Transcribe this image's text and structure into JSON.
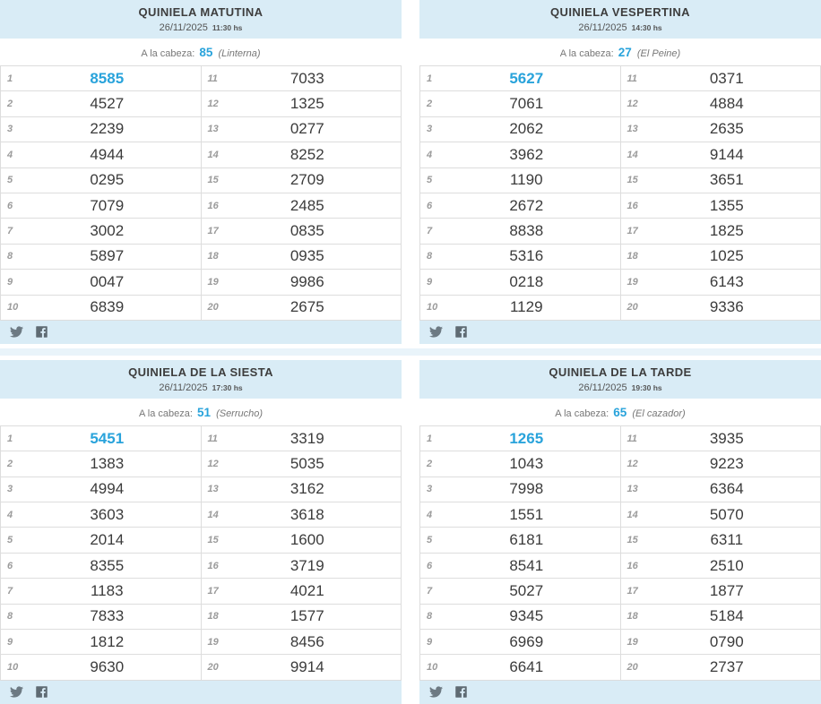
{
  "colors": {
    "accent_blue": "#29a3db",
    "panel_header_bg": "#d9ecf6",
    "table_border": "#dddddd",
    "number_text": "#3b3b3b",
    "position_text": "#9b9b9b"
  },
  "cabeza_label": "A la cabeza:",
  "position_labels": [
    "1",
    "2",
    "3",
    "4",
    "5",
    "6",
    "7",
    "8",
    "9",
    "10",
    "11",
    "12",
    "13",
    "14",
    "15",
    "16",
    "17",
    "18",
    "19",
    "20"
  ],
  "icons": {
    "twitter": "twitter-icon",
    "facebook": "facebook-icon"
  },
  "panels": [
    {
      "title": "QUINIELA MATUTINA",
      "date": "26/11/2025",
      "time": "11:30 hs",
      "cabeza_number": "85",
      "cabeza_name": "(Linterna)",
      "numbers": [
        "8585",
        "4527",
        "2239",
        "4944",
        "0295",
        "7079",
        "3002",
        "5897",
        "0047",
        "6839",
        "7033",
        "1325",
        "0277",
        "8252",
        "2709",
        "2485",
        "0835",
        "0935",
        "9986",
        "2675"
      ]
    },
    {
      "title": "QUINIELA VESPERTINA",
      "date": "26/11/2025",
      "time": "14:30 hs",
      "cabeza_number": "27",
      "cabeza_name": "(El Peine)",
      "numbers": [
        "5627",
        "7061",
        "2062",
        "3962",
        "1190",
        "2672",
        "8838",
        "5316",
        "0218",
        "1129",
        "0371",
        "4884",
        "2635",
        "9144",
        "3651",
        "1355",
        "1825",
        "1025",
        "6143",
        "9336"
      ]
    },
    {
      "title": "QUINIELA DE LA SIESTA",
      "date": "26/11/2025",
      "time": "17:30 hs",
      "cabeza_number": "51",
      "cabeza_name": "(Serrucho)",
      "numbers": [
        "5451",
        "1383",
        "4994",
        "3603",
        "2014",
        "8355",
        "1183",
        "7833",
        "1812",
        "9630",
        "3319",
        "5035",
        "3162",
        "3618",
        "1600",
        "3719",
        "4021",
        "1577",
        "8456",
        "9914"
      ]
    },
    {
      "title": "QUINIELA DE LA TARDE",
      "date": "26/11/2025",
      "time": "19:30 hs",
      "cabeza_number": "65",
      "cabeza_name": "(El cazador)",
      "numbers": [
        "1265",
        "1043",
        "7998",
        "1551",
        "6181",
        "8541",
        "5027",
        "9345",
        "6969",
        "6641",
        "3935",
        "9223",
        "6364",
        "5070",
        "6311",
        "2510",
        "1877",
        "5184",
        "0790",
        "2737"
      ]
    }
  ]
}
